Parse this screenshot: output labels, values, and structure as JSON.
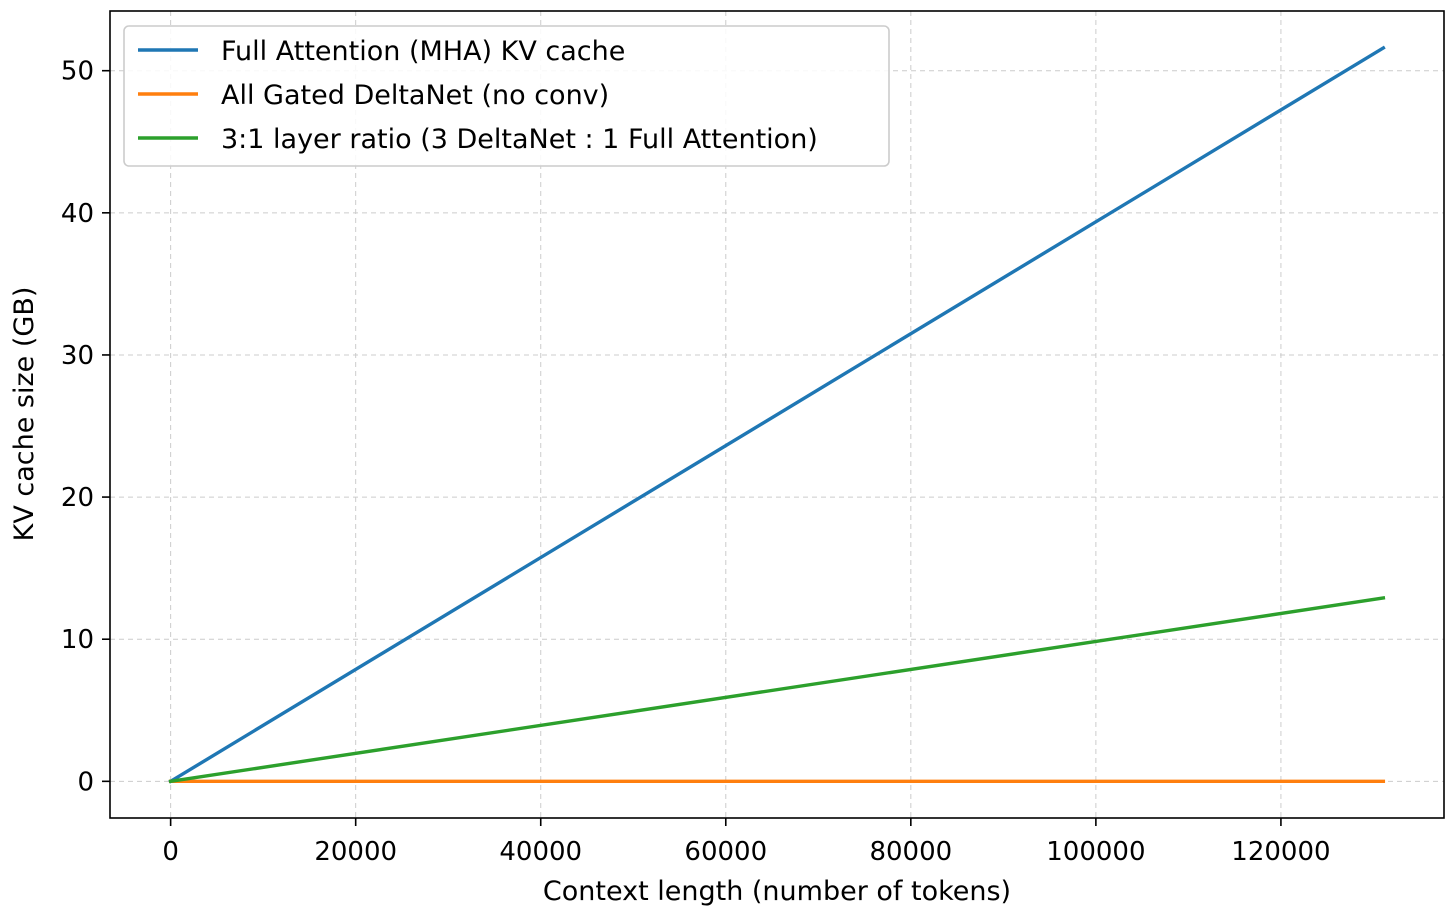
{
  "chart_data": {
    "type": "line",
    "title": "",
    "xlabel": "Context length (number of tokens)",
    "ylabel": "KV cache size (GB)",
    "xlim": [
      -6553.6,
      137625.6
    ],
    "ylim": [
      -2.58,
      54.2
    ],
    "xticks": [
      0,
      20000,
      40000,
      60000,
      80000,
      100000,
      120000
    ],
    "yticks": [
      0,
      10,
      20,
      30,
      40,
      50
    ],
    "xtick_labels": [
      "0",
      "20000",
      "40000",
      "60000",
      "80000",
      "100000",
      "120000"
    ],
    "ytick_labels": [
      "0",
      "10",
      "20",
      "30",
      "40",
      "50"
    ],
    "grid": true,
    "legend_position": "top-left",
    "series": [
      {
        "name": "Full Attention (MHA) KV cache",
        "color": "#1f77b4",
        "x": [
          0,
          131072
        ],
        "y": [
          0,
          51.6
        ]
      },
      {
        "name": "All Gated DeltaNet (no conv)",
        "color": "#ff7f0e",
        "x": [
          0,
          131072
        ],
        "y": [
          0,
          0
        ]
      },
      {
        "name": "3:1 layer ratio (3 DeltaNet : 1 Full Attention)",
        "color": "#2ca02c",
        "x": [
          0,
          131072
        ],
        "y": [
          0,
          12.9
        ]
      }
    ]
  }
}
